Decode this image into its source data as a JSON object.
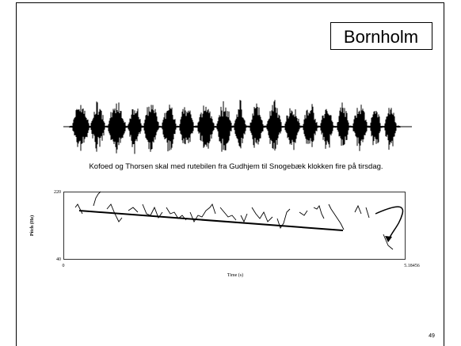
{
  "slide": {
    "title": "Bornholm",
    "caption": "Kofoed og Thorsen skal med rutebilen fra Gudhjem til Snogebæk klokken fire på tirsdag.",
    "plot": {
      "y_top": "220",
      "y_bottom": "40",
      "x_left": "0",
      "x_right": "5.18456",
      "x_label": "Time (s)",
      "y_label": "Pitch (Hz)"
    },
    "page_number": "49"
  }
}
